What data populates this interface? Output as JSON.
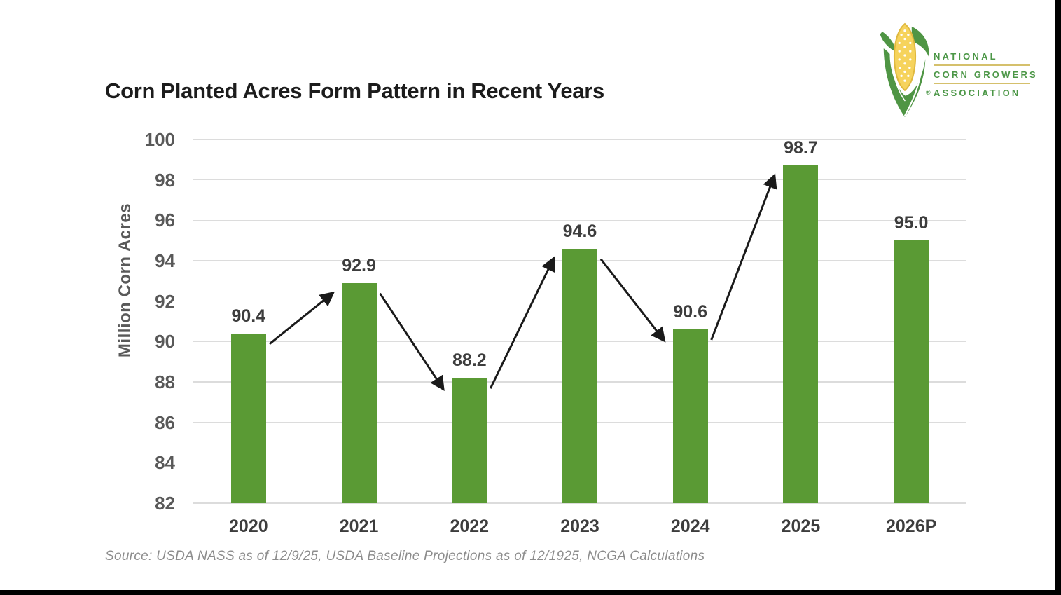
{
  "header": {
    "title": "Corn Planted Acres Form Pattern in Recent Years"
  },
  "logo": {
    "org_lines": [
      "NATIONAL",
      "CORN GROWERS",
      "ASSOCIATION"
    ],
    "registered_mark": "®",
    "text_color": "#4c9747",
    "rule_color": "#d5c06c",
    "husk_color": "#4f9544",
    "kernel_color": "#f6d35c"
  },
  "chart_data": {
    "type": "bar",
    "title": "Corn Planted Acres Form Pattern in Recent Years",
    "categories": [
      "2020",
      "2021",
      "2022",
      "2023",
      "2024",
      "2025",
      "2026P"
    ],
    "values": [
      90.4,
      92.9,
      88.2,
      94.6,
      90.6,
      98.7,
      95.0
    ],
    "data_labels": [
      "90.4",
      "92.9",
      "88.2",
      "94.6",
      "90.6",
      "98.7",
      "95.0"
    ],
    "xlabel": "",
    "ylabel": "Million Corn Acres",
    "ylim": [
      82,
      100
    ],
    "yticks": [
      82,
      84,
      86,
      88,
      90,
      92,
      94,
      96,
      98,
      100
    ],
    "grid": true,
    "legend": "none",
    "bar_color": "#5a9a34",
    "gridline_color": "#dcdcdc",
    "arrow_color": "#1a1a1a",
    "arrows": [
      {
        "from_index": 0,
        "to_index": 1,
        "trend": "up"
      },
      {
        "from_index": 1,
        "to_index": 2,
        "trend": "down"
      },
      {
        "from_index": 2,
        "to_index": 3,
        "trend": "up"
      },
      {
        "from_index": 3,
        "to_index": 4,
        "trend": "down"
      },
      {
        "from_index": 4,
        "to_index": 5,
        "trend": "up"
      }
    ]
  },
  "footer": {
    "source": "Source: USDA NASS as of 12/9/25, USDA Baseline Projections as of 12/1925, NCGA Calculations"
  }
}
